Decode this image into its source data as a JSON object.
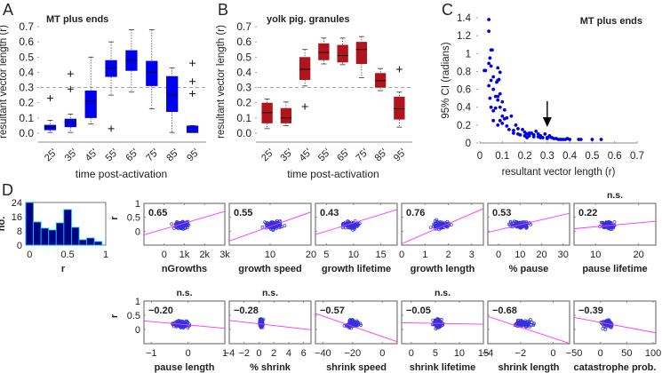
{
  "panel_labels": {
    "A": "A",
    "B": "B",
    "C": "C",
    "D": "D"
  },
  "chart_data": [
    {
      "id": "A",
      "type": "box",
      "title": "MT plus ends",
      "xlabel": "time post-activation",
      "ylabel": "resultant vector length (r)",
      "ylim": [
        0,
        0.7
      ],
      "yticks": [
        "0.0",
        "0.1",
        "0.2",
        "0.3",
        "0.4",
        "0.5",
        "0.6",
        "0.7"
      ],
      "threshold": 0.3,
      "color": "#0000ee",
      "categories": [
        "25'",
        "35'",
        "45'",
        "55'",
        "65'",
        "75'",
        "85'",
        "95'"
      ],
      "boxes": [
        {
          "q1": 0.02,
          "median": 0.04,
          "q3": 0.055,
          "whisker_low": 0.005,
          "whisker_high": 0.085,
          "outliers": [
            0.23
          ]
        },
        {
          "q1": 0.04,
          "median": 0.07,
          "q3": 0.095,
          "whisker_low": 0.005,
          "whisker_high": 0.125,
          "outliers": [
            0.29,
            0.39
          ]
        },
        {
          "q1": 0.1,
          "median": 0.21,
          "q3": 0.28,
          "whisker_low": 0.06,
          "whisker_high": 0.5,
          "outliers": []
        },
        {
          "q1": 0.37,
          "median": 0.43,
          "q3": 0.48,
          "whisker_low": 0.25,
          "whisker_high": 0.6,
          "outliers": [
            0.03
          ]
        },
        {
          "q1": 0.41,
          "median": 0.48,
          "q3": 0.545,
          "whisker_low": 0.27,
          "whisker_high": 0.68,
          "outliers": []
        },
        {
          "q1": 0.31,
          "median": 0.4,
          "q3": 0.475,
          "whisker_low": 0.16,
          "whisker_high": 0.68,
          "outliers": []
        },
        {
          "q1": 0.14,
          "median": 0.25,
          "q3": 0.375,
          "whisker_low": 0.005,
          "whisker_high": 0.43,
          "outliers": []
        },
        {
          "q1": 0.005,
          "median": 0.005,
          "q3": 0.05,
          "whisker_low": 0.005,
          "whisker_high": 0.05,
          "outliers": [
            0.26,
            0.34,
            0.46
          ]
        }
      ]
    },
    {
      "id": "B",
      "type": "box",
      "title": "yolk pig. granules",
      "xlabel": "time post-activation",
      "ylabel": "resultant vector length (r)",
      "ylim": [
        0,
        0.7
      ],
      "yticks": [
        "0.0",
        "0.1",
        "0.2",
        "0.3",
        "0.4",
        "0.5",
        "0.6",
        "0.7"
      ],
      "threshold": 0.3,
      "color": "#b0141c",
      "categories": [
        "25'",
        "35'",
        "45'",
        "55'",
        "65'",
        "75'",
        "85'",
        "95'"
      ],
      "boxes": [
        {
          "q1": 0.065,
          "median": 0.135,
          "q3": 0.2,
          "whisker_low": 0.03,
          "whisker_high": 0.225,
          "outliers": []
        },
        {
          "q1": 0.065,
          "median": 0.1,
          "q3": 0.165,
          "whisker_low": 0.05,
          "whisker_high": 0.205,
          "outliers": []
        },
        {
          "q1": 0.35,
          "median": 0.42,
          "q3": 0.5,
          "whisker_low": 0.31,
          "whisker_high": 0.55,
          "outliers": [
            0.175
          ]
        },
        {
          "q1": 0.48,
          "median": 0.53,
          "q3": 0.59,
          "whisker_low": 0.455,
          "whisker_high": 0.625,
          "outliers": []
        },
        {
          "q1": 0.465,
          "median": 0.51,
          "q3": 0.58,
          "whisker_low": 0.45,
          "whisker_high": 0.625,
          "outliers": []
        },
        {
          "q1": 0.455,
          "median": 0.55,
          "q3": 0.6,
          "whisker_low": 0.365,
          "whisker_high": 0.635,
          "outliers": []
        },
        {
          "q1": 0.3,
          "median": 0.345,
          "q3": 0.395,
          "whisker_low": 0.28,
          "whisker_high": 0.425,
          "outliers": []
        },
        {
          "q1": 0.09,
          "median": 0.16,
          "q3": 0.24,
          "whisker_low": 0.04,
          "whisker_high": 0.27,
          "outliers": [
            0.42
          ]
        }
      ]
    },
    {
      "id": "C",
      "type": "scatter",
      "title": "MT plus ends",
      "xlabel": "resultant vector length (r)",
      "ylabel": "95% CI (radians)",
      "xlim": [
        0,
        0.7
      ],
      "ylim": [
        0,
        1.4
      ],
      "xticks": [
        "0",
        "0.1",
        "0.2",
        "0.3",
        "0.4",
        "0.5",
        "0.6",
        "0.7"
      ],
      "yticks": [
        "0",
        "0.2",
        "0.4",
        "0.6",
        "0.8",
        "1",
        "1.2",
        "1.4"
      ],
      "color": "#0000ee",
      "annotation": {
        "type": "arrow",
        "x": 0.3,
        "label": ""
      },
      "points": [
        [
          0.04,
          1.38
        ],
        [
          0.04,
          1.25
        ],
        [
          0.05,
          1.04
        ],
        [
          0.055,
          1.04
        ],
        [
          0.045,
          0.95
        ],
        [
          0.04,
          0.89
        ],
        [
          0.025,
          0.81
        ],
        [
          0.02,
          0.81
        ],
        [
          0.05,
          0.86
        ],
        [
          0.06,
          0.74
        ],
        [
          0.08,
          0.84
        ],
        [
          0.09,
          0.79
        ],
        [
          0.085,
          0.71
        ],
        [
          0.08,
          0.7
        ],
        [
          0.075,
          0.68
        ],
        [
          0.05,
          0.7
        ],
        [
          0.04,
          0.64
        ],
        [
          0.06,
          0.6
        ],
        [
          0.08,
          0.52
        ],
        [
          0.07,
          0.52
        ],
        [
          0.09,
          0.55
        ],
        [
          0.08,
          0.48
        ],
        [
          0.045,
          0.5
        ],
        [
          0.1,
          0.46
        ],
        [
          0.05,
          0.4
        ],
        [
          0.07,
          0.39
        ],
        [
          0.06,
          0.36
        ],
        [
          0.09,
          0.4
        ],
        [
          0.11,
          0.37
        ],
        [
          0.1,
          0.3
        ],
        [
          0.11,
          0.27
        ],
        [
          0.12,
          0.28
        ],
        [
          0.09,
          0.25
        ],
        [
          0.06,
          0.25
        ],
        [
          0.08,
          0.2
        ],
        [
          0.1,
          0.22
        ],
        [
          0.14,
          0.3
        ],
        [
          0.12,
          0.19
        ],
        [
          0.13,
          0.15
        ],
        [
          0.15,
          0.14
        ],
        [
          0.16,
          0.2
        ],
        [
          0.17,
          0.16
        ],
        [
          0.15,
          0.11
        ],
        [
          0.17,
          0.1
        ],
        [
          0.19,
          0.15
        ],
        [
          0.18,
          0.09
        ],
        [
          0.2,
          0.12
        ],
        [
          0.21,
          0.1
        ],
        [
          0.22,
          0.08
        ],
        [
          0.23,
          0.11
        ],
        [
          0.24,
          0.09
        ],
        [
          0.25,
          0.13
        ],
        [
          0.26,
          0.1
        ],
        [
          0.22,
          0.11
        ],
        [
          0.24,
          0.07
        ],
        [
          0.26,
          0.07
        ],
        [
          0.27,
          0.08
        ],
        [
          0.28,
          0.06
        ],
        [
          0.29,
          0.1
        ],
        [
          0.3,
          0.06
        ],
        [
          0.31,
          0.07
        ],
        [
          0.32,
          0.06
        ],
        [
          0.3,
          0.05
        ],
        [
          0.33,
          0.05
        ],
        [
          0.34,
          0.05
        ],
        [
          0.35,
          0.04
        ],
        [
          0.36,
          0.04
        ],
        [
          0.37,
          0.04
        ],
        [
          0.38,
          0.04
        ],
        [
          0.39,
          0.05
        ],
        [
          0.4,
          0.04
        ],
        [
          0.44,
          0.04
        ],
        [
          0.45,
          0.04
        ],
        [
          0.5,
          0.04
        ],
        [
          0.54,
          0.04
        ],
        [
          0.2,
          0.08
        ],
        [
          0.21,
          0.06
        ],
        [
          0.27,
          0.06
        ],
        [
          0.31,
          0.08
        ]
      ]
    },
    {
      "id": "D-hist",
      "type": "bar",
      "xlabel": "r",
      "ylabel": "no.",
      "xlim": [
        -0.05,
        1.0
      ],
      "ylim": [
        0,
        24
      ],
      "xticks": [
        "0",
        "0.5",
        "1"
      ],
      "yticks": [
        "0",
        "8",
        "16",
        "24"
      ],
      "bin_centers": [
        0,
        0.1,
        0.2,
        0.3,
        0.4,
        0.5,
        0.6,
        0.7,
        0.8,
        0.9
      ],
      "values": [
        24,
        13,
        9.5,
        8.5,
        12.5,
        20,
        10,
        3,
        4,
        2
      ],
      "color": "#000080",
      "edge_color": "#00c0ff"
    },
    {
      "id": "D-scatter",
      "type": "scatter",
      "ylabel": "r",
      "ylim": [
        -0.5,
        1.0
      ],
      "yticks": [
        "0",
        "0.5",
        "1"
      ],
      "point_color": "#3333dd",
      "fit_color": "#ff33ff",
      "panels": [
        {
          "xlabel": "nGrowths",
          "xlim": [
            -1000,
            3000
          ],
          "xticks": [
            "0",
            "1k",
            "2k",
            "3k"
          ],
          "xtick_vals": [
            0,
            1000,
            2000,
            3000
          ],
          "corr": "0.65",
          "sig": "",
          "fit": [
            0.08,
            0.00021
          ],
          "cx": 900,
          "sx": 350,
          "cy": 0.22,
          "sy": 0.12
        },
        {
          "xlabel": "growth speed",
          "xlim": [
            0,
            20
          ],
          "xticks": [
            "10",
            "20"
          ],
          "xtick_vals": [
            10,
            20
          ],
          "corr": "0.55",
          "sig": "",
          "fit": [
            -0.35,
            0.052
          ],
          "cx": 11,
          "sx": 2,
          "cy": 0.22,
          "sy": 0.12
        },
        {
          "xlabel": "growth lifetime",
          "xlim": [
            3,
            18
          ],
          "xticks": [
            "5",
            "10",
            "15"
          ],
          "xtick_vals": [
            5,
            10,
            15
          ],
          "corr": "0.43",
          "sig": "",
          "fit": [
            -0.3,
            0.06
          ],
          "cx": 9.5,
          "sx": 1.5,
          "cy": 0.22,
          "sy": 0.12
        },
        {
          "xlabel": "growth length",
          "xlim": [
            0,
            3.5
          ],
          "xticks": [
            "0",
            "1",
            "2",
            "3"
          ],
          "xtick_vals": [
            0,
            1,
            2,
            3
          ],
          "corr": "0.76",
          "sig": "",
          "fit": [
            -0.45,
            0.36
          ],
          "cx": 1.7,
          "sx": 0.35,
          "cy": 0.22,
          "sy": 0.12
        },
        {
          "xlabel": "% pause",
          "xlim": [
            -5,
            33
          ],
          "xticks": [
            "0",
            "10",
            "20",
            "30"
          ],
          "xtick_vals": [
            0,
            10,
            20,
            30
          ],
          "corr": "0.53",
          "sig": "",
          "fit": [
            0.05,
            0.018
          ],
          "cx": 10,
          "sx": 4,
          "cy": 0.22,
          "sy": 0.12
        },
        {
          "xlabel": "pause lifetime",
          "xlim": [
            5,
            24
          ],
          "xticks": [
            "10",
            "20"
          ],
          "xtick_vals": [
            10,
            20
          ],
          "corr": "0.22",
          "sig": "n.s.",
          "fit": [
            0.02,
            0.014
          ],
          "cx": 13,
          "sx": 1.5,
          "cy": 0.22,
          "sy": 0.12
        },
        {
          "xlabel": "pause length",
          "xlim": [
            -1.2,
            1
          ],
          "xticks": [
            "-1",
            "0",
            "1"
          ],
          "xtick_vals": [
            -1,
            0,
            1
          ],
          "corr": "−0.20",
          "sig": "n.s.",
          "fit": [
            0.16,
            -0.12
          ],
          "cx": -0.2,
          "sx": 0.2,
          "cy": 0.2,
          "sy": 0.12
        },
        {
          "xlabel": "% shrink",
          "xlim": [
            -4,
            7
          ],
          "xticks": [
            "-4",
            "-2",
            "0",
            "2",
            "4",
            "6"
          ],
          "xtick_vals": [
            -4,
            -2,
            0,
            2,
            4,
            6
          ],
          "corr": "−0.28",
          "sig": "n.s.",
          "fit": [
            0.2,
            -0.03
          ],
          "cx": 0.3,
          "sx": 0.2,
          "cy": 0.22,
          "sy": 0.14
        },
        {
          "xlabel": "shrink speed",
          "xlim": [
            -45,
            10
          ],
          "xticks": [
            "-40",
            "-20",
            "0"
          ],
          "xtick_vals": [
            -40,
            -20,
            0
          ],
          "corr": "−0.57",
          "sig": "",
          "fit": [
            -0.25,
            -0.018
          ],
          "cx": -20,
          "sx": 4,
          "cy": 0.2,
          "sy": 0.12
        },
        {
          "xlabel": "shrink lifetime",
          "xlim": [
            -2,
            15
          ],
          "xticks": [
            "0",
            "5",
            "10",
            "15"
          ],
          "xtick_vals": [
            0,
            5,
            10,
            15
          ],
          "corr": "−0.05",
          "sig": "n.s.",
          "fit": [
            0.23,
            -0.003
          ],
          "cx": 5.5,
          "sx": 0.9,
          "cy": 0.22,
          "sy": 0.13
        },
        {
          "xlabel": "shrink length",
          "xlim": [
            -4,
            1
          ],
          "xticks": [
            "-4",
            "-2",
            "0"
          ],
          "xtick_vals": [
            -4,
            -2,
            0
          ],
          "corr": "−0.68",
          "sig": "",
          "fit": [
            -0.3,
            -0.19
          ],
          "cx": -1.8,
          "sx": 0.5,
          "cy": 0.2,
          "sy": 0.12
        },
        {
          "xlabel": "catastrophe prob.",
          "xlim": [
            -50,
            105
          ],
          "xticks": [
            "-50",
            "0",
            "50",
            "100"
          ],
          "xtick_vals": [
            -50,
            0,
            50,
            100
          ],
          "corr": "−0.39",
          "sig": "",
          "fit": [
            0.25,
            -0.0035
          ],
          "cx": 12,
          "sx": 10,
          "cy": 0.22,
          "sy": 0.14
        }
      ]
    }
  ]
}
